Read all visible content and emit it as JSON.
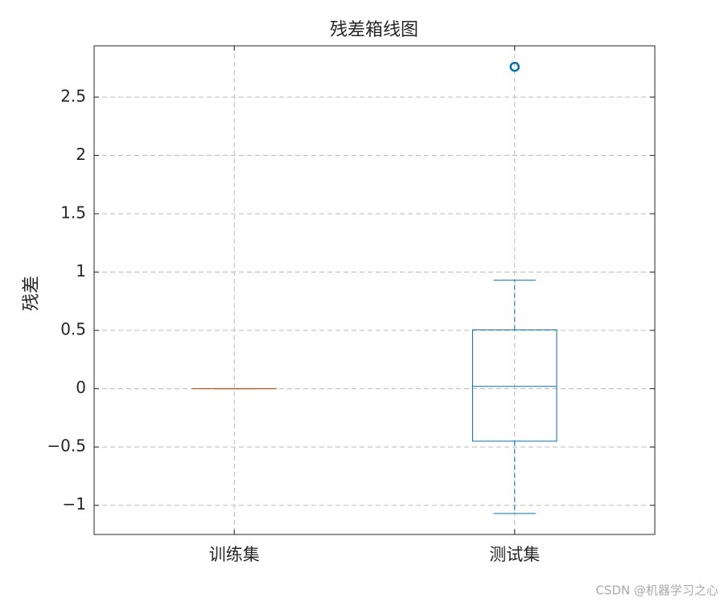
{
  "chart_data": {
    "type": "box",
    "title": "残差箱线图",
    "ylabel": "残差",
    "categories": [
      "训练集",
      "测试集"
    ],
    "boxes": [
      {
        "color": "#d95319",
        "min": 0,
        "q1": 0,
        "median": 0,
        "q3": 0,
        "max": 0,
        "outliers": []
      },
      {
        "color": "#0072bd",
        "min": -1.07,
        "q1": -0.45,
        "median": 0.02,
        "q3": 0.505,
        "max": 0.93,
        "outliers": [
          2.76
        ]
      }
    ],
    "ylim": [
      -1.25,
      2.94
    ],
    "yticks": [
      {
        "value": -1,
        "label": "−1"
      },
      {
        "value": -0.5,
        "label": "−0.5"
      },
      0,
      0.5,
      1,
      1.5,
      2,
      2.5
    ],
    "grid": true
  },
  "watermark": "CSDN @机器学习之心"
}
